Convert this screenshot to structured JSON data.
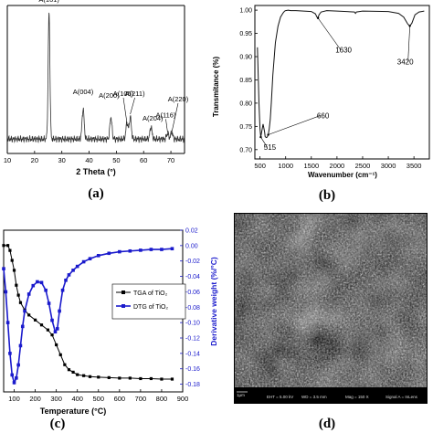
{
  "colors": {
    "axis": "#000000",
    "trace": "#333333",
    "tga": "#000000",
    "dtg": "#1a1acc",
    "sem_bg": "#b8b8b8"
  },
  "chart_data": [
    {
      "type": "line",
      "panel_label": "(a)",
      "xlabel": "2 Theta (°)",
      "ylabel": "",
      "xlim": [
        10,
        75
      ],
      "xticks": [
        "10",
        "20",
        "30",
        "40",
        "50",
        "60",
        "70"
      ],
      "grid": false,
      "peaks": [
        {
          "label": "A(101)",
          "x": 25.3,
          "h": 0.92
        },
        {
          "label": "A(004)",
          "x": 37.8,
          "h": 0.22
        },
        {
          "label": "A(200)",
          "x": 48.0,
          "h": 0.16
        },
        {
          "label": "A(105)",
          "x": 53.9,
          "h": 0.12
        },
        {
          "label": "A(211)",
          "x": 55.1,
          "h": 0.16
        },
        {
          "label": "A(204)",
          "x": 62.7,
          "h": 0.09
        },
        {
          "label": "A(116)",
          "x": 68.8,
          "h": 0.04
        },
        {
          "label": "A(220)",
          "x": 70.3,
          "h": 0.05
        }
      ]
    },
    {
      "type": "line",
      "panel_label": "(b)",
      "xlabel": "Wavenumber (cm⁻¹)",
      "ylabel": "Transmitance (%)",
      "xlim": [
        400,
        3800
      ],
      "ylim": [
        0.68,
        1.01
      ],
      "xticks": [
        "500",
        "1000",
        "1500",
        "2000",
        "2500",
        "3000",
        "3500"
      ],
      "yticks": [
        "0.70",
        "0.75",
        "0.80",
        "0.85",
        "0.90",
        "0.95",
        "1.00"
      ],
      "grid": false,
      "x": [
        450,
        480,
        500,
        515,
        560,
        590,
        600,
        620,
        640,
        660,
        680,
        700,
        720,
        750,
        800,
        850,
        900,
        950,
        980,
        1000,
        1050,
        1100,
        1200,
        1500,
        1580,
        1610,
        1630,
        1650,
        1690,
        1800,
        2000,
        2340,
        2360,
        2380,
        2500,
        3000,
        3200,
        3300,
        3380,
        3420,
        3460,
        3520,
        3600,
        3700
      ],
      "y": [
        0.92,
        0.8,
        0.745,
        0.727,
        0.755,
        0.738,
        0.728,
        0.726,
        0.727,
        0.732,
        0.745,
        0.765,
        0.8,
        0.86,
        0.93,
        0.965,
        0.985,
        0.994,
        0.998,
        0.999,
        1.0,
        0.999,
        0.999,
        0.997,
        0.992,
        0.985,
        0.983,
        0.99,
        0.996,
        0.999,
        0.998,
        0.996,
        0.993,
        0.996,
        0.998,
        0.997,
        0.993,
        0.985,
        0.97,
        0.966,
        0.972,
        0.99,
        0.996,
        0.998
      ],
      "annotations": [
        {
          "text": "515",
          "x": 515,
          "y": 0.727
        },
        {
          "text": "660",
          "x": 660,
          "y": 0.732
        },
        {
          "text": "1630",
          "x": 1630,
          "y": 0.983
        },
        {
          "text": "3420",
          "x": 3420,
          "y": 0.966
        }
      ]
    },
    {
      "type": "line",
      "panel_label": "(c)",
      "xlabel": "Temperature (°C)",
      "y2label": "Derivative weight (%/°C)",
      "xlim": [
        50,
        900
      ],
      "y2lim": [
        -0.19,
        0.02
      ],
      "xticks": [
        "100",
        "200",
        "300",
        "400",
        "500",
        "600",
        "700",
        "800",
        "900"
      ],
      "y2ticks": [
        "0.02",
        "0.00",
        "-0.02",
        "-0.04",
        "-0.06",
        "-0.08",
        "-0.10",
        "-0.12",
        "-0.14",
        "-0.16",
        "-0.18"
      ],
      "legend_position": "right",
      "grid": false,
      "series": [
        {
          "name": "TGA of TiO₂",
          "x": [
            50,
            70,
            80,
            90,
            100,
            110,
            120,
            130,
            150,
            170,
            200,
            230,
            260,
            280,
            300,
            320,
            340,
            360,
            380,
            400,
            430,
            460,
            500,
            550,
            600,
            650,
            700,
            750,
            800,
            850
          ],
          "y": [
            100,
            100,
            99,
            97,
            95,
            92,
            90,
            88.5,
            87,
            86,
            85,
            84,
            83,
            82,
            80,
            78,
            76,
            75,
            74.5,
            74,
            73.8,
            73.6,
            73.5,
            73.4,
            73.3,
            73.3,
            73.2,
            73.2,
            73.1,
            73.1
          ]
        },
        {
          "name": "DTG of TiO₂",
          "x": [
            50,
            60,
            70,
            80,
            90,
            100,
            110,
            120,
            130,
            140,
            150,
            170,
            190,
            210,
            230,
            250,
            265,
            280,
            295,
            305,
            315,
            330,
            345,
            360,
            380,
            400,
            430,
            460,
            500,
            550,
            600,
            650,
            700,
            750,
            800,
            850
          ],
          "y": [
            -0.03,
            -0.06,
            -0.1,
            -0.14,
            -0.168,
            -0.178,
            -0.172,
            -0.155,
            -0.13,
            -0.105,
            -0.085,
            -0.063,
            -0.052,
            -0.047,
            -0.048,
            -0.058,
            -0.075,
            -0.097,
            -0.112,
            -0.108,
            -0.085,
            -0.058,
            -0.045,
            -0.038,
            -0.032,
            -0.027,
            -0.021,
            -0.017,
            -0.013,
            -0.01,
            -0.008,
            -0.007,
            -0.006,
            -0.005,
            -0.005,
            -0.004
          ]
        }
      ]
    }
  ],
  "panel_d": {
    "label": "(d)",
    "info": {
      "scale": "1μm",
      "eht": "EHT = 5.00 kV",
      "wd": "WD = 3.5 mm",
      "mag": "Mag = 150 X",
      "signal": "Signal A = InLens"
    }
  }
}
